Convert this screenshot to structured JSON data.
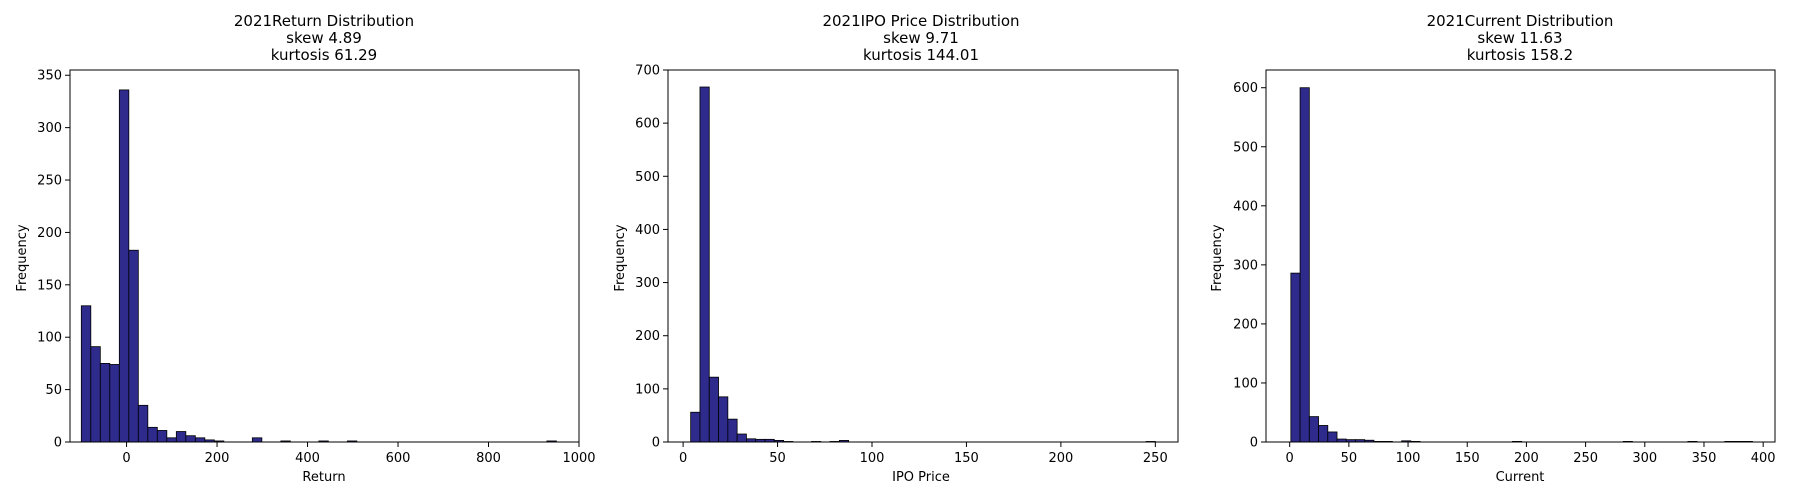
{
  "colors": {
    "bar_fill": "#2e2b8c",
    "bar_edge": "#000000",
    "axes": "#000000",
    "background": "#ffffff"
  },
  "chart_data": [
    {
      "type": "bar",
      "title": [
        "2021Return Distribution",
        "skew 4.89",
        "kurtosis 61.29"
      ],
      "xlabel": "Return",
      "ylabel": "Frequency",
      "xlim": [
        -125,
        1000
      ],
      "ylim": [
        0,
        355
      ],
      "xticks": [
        0,
        200,
        400,
        600,
        800,
        1000
      ],
      "yticks": [
        0,
        50,
        100,
        150,
        200,
        250,
        300,
        350
      ],
      "bin_start": -100,
      "bin_width": 21,
      "values": [
        130,
        91,
        75,
        74,
        336,
        183,
        35,
        14,
        11,
        4,
        10,
        6,
        4,
        2,
        1,
        0,
        0,
        0,
        4,
        0,
        0,
        1,
        0,
        0,
        0,
        1,
        0,
        0,
        1,
        0,
        0,
        0,
        0,
        0,
        0,
        0,
        0,
        0,
        0,
        0,
        0,
        0,
        0,
        0,
        0,
        0,
        0,
        0,
        0,
        1
      ],
      "grid": false,
      "legend": "none"
    },
    {
      "type": "bar",
      "title": [
        "2021IPO Price Distribution",
        "skew 9.71",
        "kurtosis 144.01"
      ],
      "xlabel": "IPO Price",
      "ylabel": "Frequency",
      "xlim": [
        -8,
        262
      ],
      "ylim": [
        0,
        700
      ],
      "xticks": [
        0,
        50,
        100,
        150,
        200,
        250
      ],
      "yticks": [
        0,
        100,
        200,
        300,
        400,
        500,
        600,
        700
      ],
      "bin_start": 4,
      "bin_width": 4.92,
      "values": [
        56,
        668,
        122,
        85,
        43,
        15,
        6,
        5,
        5,
        3,
        1,
        0,
        0,
        1,
        0,
        1,
        3,
        0,
        0,
        0,
        0,
        0,
        0,
        0,
        0,
        0,
        0,
        0,
        0,
        0,
        0,
        0,
        0,
        0,
        0,
        0,
        0,
        0,
        0,
        0,
        0,
        0,
        0,
        0,
        0,
        0,
        0,
        0,
        0,
        1
      ],
      "grid": false,
      "legend": "none"
    },
    {
      "type": "bar",
      "title": [
        "2021Current Distribution",
        "skew 11.63",
        "kurtosis 158.2"
      ],
      "xlabel": "Current",
      "ylabel": "Frequency",
      "xlim": [
        -20,
        410
      ],
      "ylim": [
        0,
        630
      ],
      "xticks": [
        0,
        50,
        100,
        150,
        200,
        250,
        300,
        350,
        400
      ],
      "yticks": [
        0,
        100,
        200,
        300,
        400,
        500,
        600
      ],
      "bin_start": 1,
      "bin_width": 7.8,
      "values": [
        286,
        600,
        43,
        28,
        17,
        5,
        4,
        4,
        3,
        1,
        1,
        0,
        2,
        1,
        0,
        0,
        0,
        0,
        0,
        0,
        0,
        0,
        0,
        0,
        1,
        0,
        0,
        0,
        0,
        0,
        0,
        0,
        0,
        0,
        0,
        0,
        1,
        0,
        0,
        0,
        0,
        0,
        0,
        1,
        0,
        0,
        0,
        1,
        1,
        1
      ],
      "grid": false,
      "legend": "none"
    }
  ]
}
